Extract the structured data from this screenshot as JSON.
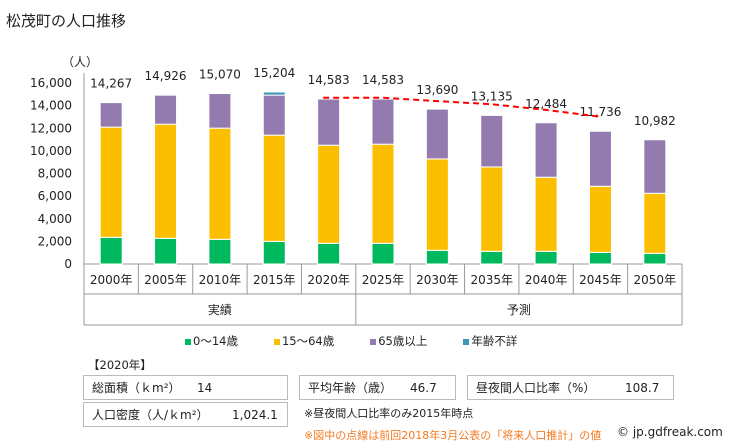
{
  "title": "松茂町の人口推移",
  "chart_data": {
    "type": "bar",
    "stacked": true,
    "ylabel": "（人）",
    "ylim": [
      0,
      16000
    ],
    "yticks": [
      0,
      2000,
      4000,
      6000,
      8000,
      10000,
      12000,
      14000,
      16000
    ],
    "ytick_labels": [
      "0",
      "2,000",
      "4,000",
      "6,000",
      "8,000",
      "10,000",
      "12,000",
      "14,000",
      "16,000"
    ],
    "categories": [
      "2000年",
      "2005年",
      "2010年",
      "2015年",
      "2020年",
      "2025年",
      "2030年",
      "2035年",
      "2040年",
      "2045年",
      "2050年"
    ],
    "groups": [
      {
        "label": "実績",
        "from": 0,
        "to": 4
      },
      {
        "label": "予測",
        "from": 5,
        "to": 10
      }
    ],
    "totals": [
      14267,
      14926,
      15070,
      15204,
      14583,
      14583,
      13690,
      13135,
      12484,
      11736,
      10982
    ],
    "total_labels": [
      "14,267",
      "14,926",
      "15,070",
      "15,204",
      "14,583",
      "14,583",
      "13,690",
      "13,135",
      "12,484",
      "11,736",
      "10,982"
    ],
    "series": [
      {
        "name": "0〜14歳",
        "color": "#00b95f",
        "values": [
          2360,
          2270,
          2180,
          2000,
          1830,
          1830,
          1210,
          1120,
          1120,
          1030,
          940
        ]
      },
      {
        "name": "15〜64歳",
        "color": "#fcbf00",
        "values": [
          9740,
          10090,
          9830,
          9390,
          8670,
          8760,
          8080,
          7460,
          6550,
          5840,
          5310
        ]
      },
      {
        "name": "65歳以上",
        "color": "#937bb0",
        "values": [
          2167,
          2566,
          3060,
          3540,
          4083,
          3993,
          4400,
          4555,
          4814,
          4866,
          4732
        ]
      },
      {
        "name": "年齢不詳",
        "color": "#3f97b7",
        "values": [
          0,
          0,
          0,
          274,
          0,
          0,
          0,
          0,
          0,
          0,
          0
        ]
      }
    ],
    "previous_projection": {
      "color": "#ff0000",
      "style": "dashed",
      "categories": [
        "2020年",
        "2025年",
        "2030年",
        "2035年",
        "2040年",
        "2045年"
      ],
      "values": [
        14700,
        14700,
        14400,
        14120,
        13620,
        13020
      ]
    },
    "grid": false,
    "legend": "bottom"
  },
  "info": {
    "year": "【2020年】",
    "area_label": "総面積（ｋm²）",
    "area": "14",
    "age_label": "平均年齢（歳）",
    "age": "46.7",
    "ratio_label": "昼夜間人口比率（%）",
    "ratio": "108.7",
    "density_label": "人口密度（人/ｋm²）",
    "density": "1,024.1",
    "note1": "※昼夜間人口比率のみ2015年時点",
    "note2": "※図中の点線は前回2018年3月公表の「将来人口推計」の値",
    "copyright": "© jp.gdfreak.com"
  }
}
